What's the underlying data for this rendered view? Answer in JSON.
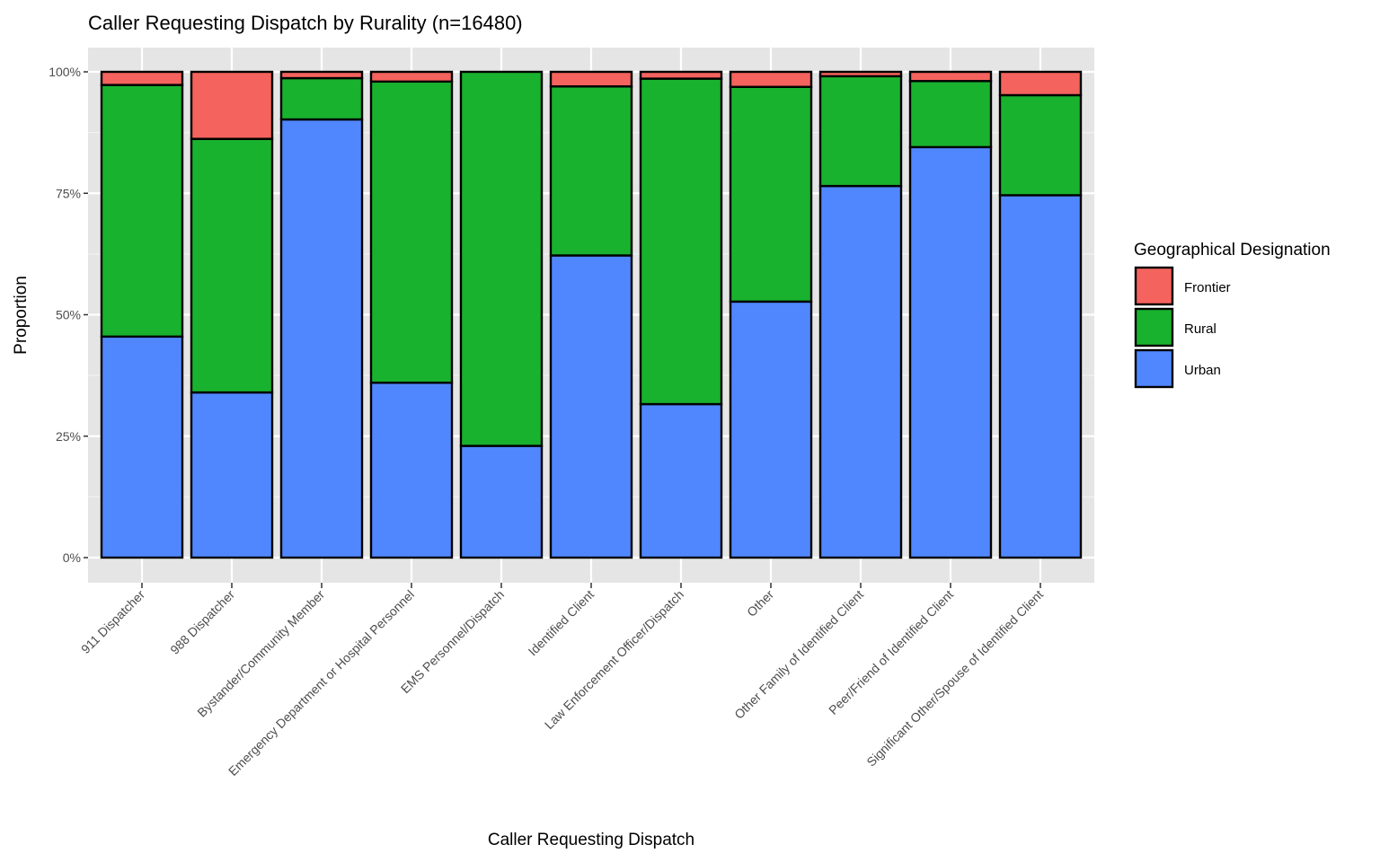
{
  "chart_data": {
    "type": "bar",
    "stacked": true,
    "title": "Caller Requesting Dispatch by Rurality (n=16480)",
    "xlabel": "Caller Requesting Dispatch",
    "ylabel": "Proportion",
    "ylim": [
      0,
      1
    ],
    "y_ticks": [
      "0%",
      "25%",
      "50%",
      "75%",
      "100%"
    ],
    "grid": true,
    "legend": {
      "title": "Geographical Designation",
      "placement": "right"
    },
    "categories": [
      "911 Dispatcher",
      "988 Dispatcher",
      "Bystander/Community Member",
      "Emergency Department or Hospital Personnel",
      "EMS Personnel/Dispatch",
      "Identified Client",
      "Law Enforcement Officer/Dispatch",
      "Other",
      "Other Family of Identified Client",
      "Peer/Friend of Identified Client",
      "Significant Other/Spouse of Identified Client"
    ],
    "series": [
      {
        "name": "Urban",
        "color": "#5087ff",
        "values": [
          0.455,
          0.34,
          0.902,
          0.36,
          0.23,
          0.622,
          0.316,
          0.527,
          0.765,
          0.845,
          0.746
        ]
      },
      {
        "name": "Rural",
        "color": "#19b22e",
        "values": [
          0.518,
          0.522,
          0.085,
          0.62,
          0.77,
          0.348,
          0.67,
          0.442,
          0.226,
          0.136,
          0.206
        ]
      },
      {
        "name": "Frontier",
        "color": "#f4635d",
        "values": [
          0.027,
          0.138,
          0.013,
          0.02,
          0.0,
          0.03,
          0.014,
          0.031,
          0.009,
          0.019,
          0.048
        ]
      }
    ],
    "legend_order": [
      "Frontier",
      "Rural",
      "Urban"
    ]
  }
}
